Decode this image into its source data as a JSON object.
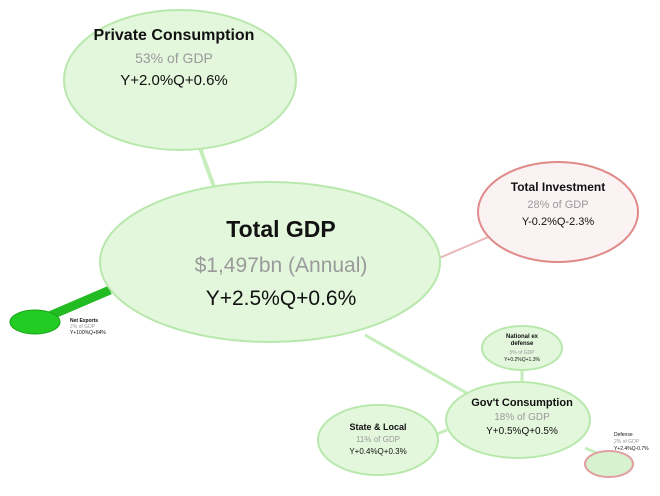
{
  "colors": {
    "green_fill": "#e3f7dc",
    "green_stroke": "#b9e8ad",
    "green_link": "#c6eebc",
    "red_stroke": "#e08a8a",
    "red_fill": "#fbf3f3",
    "net_exports_fill": "#22cc22",
    "net_exports_link": "#22bb22",
    "defense_stroke": "#e0a0a0",
    "defense_fill": "#d7f2cf",
    "title_text": "#111111",
    "share_text": "#9a9a9a"
  },
  "nodes": {
    "total_gdp": {
      "title": "Total GDP",
      "share": "$1,497bn (Annual)",
      "growth": "Y+2.5%Q+0.6%"
    },
    "private_consumption": {
      "title": "Private Consumption",
      "share": "53% of GDP",
      "growth": "Y+2.0%Q+0.6%"
    },
    "total_investment": {
      "title": "Total Investment",
      "share": "28% of GDP",
      "growth": "Y-0.2%Q-2.3%"
    },
    "net_exports": {
      "title": "Net Exports",
      "share": "2% of GDP",
      "growth": "Y+100%Q+84%"
    },
    "govt_consumption": {
      "title": "Gov't Consumption",
      "share": "18% of GDP",
      "growth": "Y+0.5%Q+0.5%"
    },
    "national_ex_defense": {
      "title_line1": "National ex",
      "title_line2": "defense",
      "share": "5% of GDP",
      "growth": "Y+0.2%Q+1.3%"
    },
    "state_local": {
      "title": "State & Local",
      "share": "11% of GDP",
      "growth": "Y+0.4%Q+0.3%"
    },
    "defense": {
      "title": "Defense",
      "share": "2% of GDP",
      "growth": "Y+2.4%Q-0.7%"
    }
  }
}
